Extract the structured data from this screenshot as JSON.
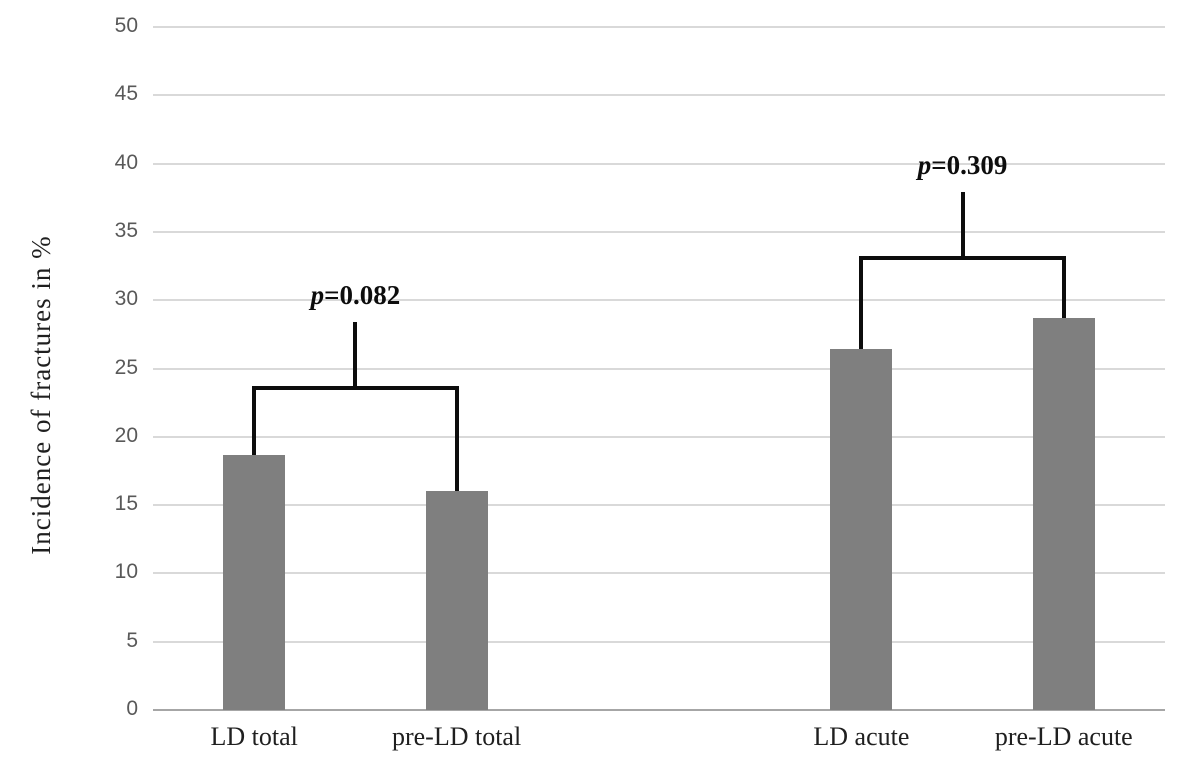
{
  "chart_data": {
    "type": "bar",
    "title": "",
    "xlabel": "",
    "ylabel": "Incidence of fractures in %",
    "categories": [
      "LD total",
      "pre-LD total",
      "LD acute",
      "pre-LD acute"
    ],
    "values": [
      18.7,
      16.0,
      26.4,
      28.7
    ],
    "ylim": [
      0,
      50
    ],
    "ytick_step": 5,
    "grid": true,
    "legend_position": "none",
    "bar_color": "#7f7f7f",
    "gridline_color": "#d9d9d9",
    "axis_line_color": "#a6a6a6",
    "tick_label_color": "#595959",
    "annotations": [
      {
        "label": "p=0.082",
        "label_italic_part": "p",
        "label_rest": "=0.082",
        "pair": [
          0,
          1
        ],
        "bracket_y": 23.7,
        "stem_top_y": 28.4
      },
      {
        "label": "p=0.309",
        "label_italic_part": "p",
        "label_rest": "=0.309",
        "pair": [
          2,
          3
        ],
        "bracket_y": 33.2,
        "stem_top_y": 37.9
      }
    ]
  }
}
